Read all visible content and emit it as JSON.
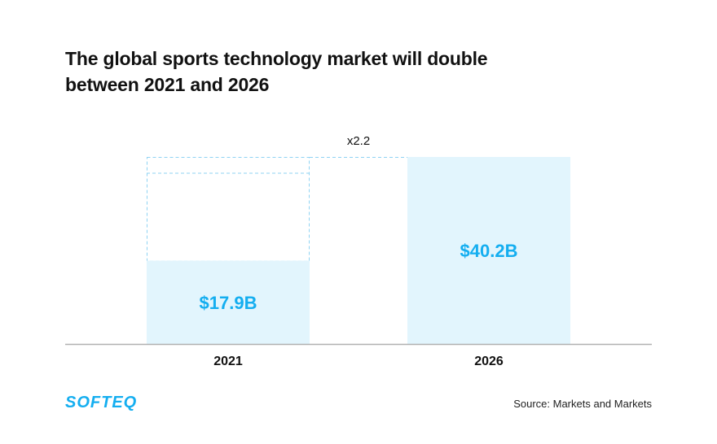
{
  "header": {
    "title_line1": "The global sports technology market will double",
    "title_line2": "between 2021 and 2026"
  },
  "chart_data": {
    "type": "bar",
    "categories": [
      "2021",
      "2026"
    ],
    "values": [
      17.9,
      40.2
    ],
    "data_labels": [
      "$17.9B",
      "$40.2B"
    ],
    "annotation": "x2.2",
    "ylim": [
      0,
      40.2
    ],
    "grid": false,
    "legend": "none"
  },
  "footer": {
    "logo_text": "SOFTEQ",
    "source": "Source: Markets and Markets"
  },
  "colors": {
    "bar_fill": "#e2f5fd",
    "label": "#14aef0",
    "dashed": "#8fd3f3",
    "axis": "#b0b0b0",
    "brand": "#14aef0"
  }
}
